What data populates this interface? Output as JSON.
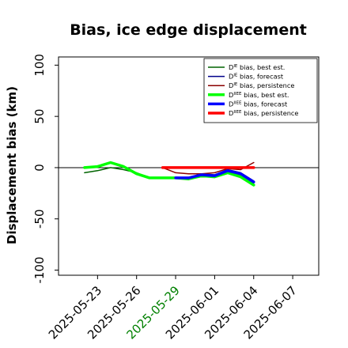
{
  "chart_data": {
    "type": "line",
    "title": "Bias, ice edge displacement",
    "ylabel": "Displacement bias (km)",
    "xlabel": "",
    "ylim": [
      -105,
      108
    ],
    "xlim": [
      "2025-05-20",
      "2025-06-09"
    ],
    "yticks": [
      -100,
      -50,
      0,
      50,
      100
    ],
    "yticklabels": [
      "-100",
      "-50",
      "0",
      "50",
      "100"
    ],
    "xticks": [
      "2025-05-23",
      "2025-05-26",
      "2025-05-29",
      "2025-06-01",
      "2025-06-04",
      "2025-06-07"
    ],
    "xticklabels": [
      "2025-05-23",
      "2025-05-26",
      "2025-05-29",
      "2025-06-01",
      "2025-06-04",
      "2025-06-07"
    ],
    "highlighted_xtick": "2025-05-29",
    "highlight_color": "#008000",
    "grid": false,
    "zero_line": true,
    "legend_position": "top-right",
    "series": [
      {
        "name": "D^IE bias, best est.",
        "name_main": "D",
        "name_sup": "IE",
        "name_rest": " bias, best est.",
        "color": "#006400",
        "width": 1.5,
        "x": [
          "2025-05-22",
          "2025-05-23",
          "2025-05-24",
          "2025-05-25",
          "2025-05-26",
          "2025-05-27",
          "2025-05-28",
          "2025-05-29",
          "2025-05-30",
          "2025-05-31",
          "2025-06-01",
          "2025-06-02",
          "2025-06-03",
          "2025-06-04"
        ],
        "y": [
          -5,
          -3,
          0,
          -2,
          -5,
          -10,
          -10,
          -10,
          -10,
          -9,
          -9,
          -5,
          -7,
          -14
        ]
      },
      {
        "name": "D^IE bias, forecast",
        "name_main": "D",
        "name_sup": "IE",
        "name_rest": " bias, forecast",
        "color": "#00008b",
        "width": 1.5,
        "x": [
          "2025-05-29",
          "2025-05-30",
          "2025-05-31",
          "2025-06-01",
          "2025-06-02",
          "2025-06-03",
          "2025-06-04"
        ],
        "y": [
          -10,
          -10,
          -6,
          -7,
          -2,
          -5,
          -13
        ]
      },
      {
        "name": "D^IE bias, persistence",
        "name_main": "D",
        "name_sup": "IE",
        "name_rest": " bias, persistence",
        "color": "#8b0000",
        "width": 1.5,
        "x": [
          "2025-05-28",
          "2025-05-29",
          "2025-05-30",
          "2025-05-31",
          "2025-06-01",
          "2025-06-02",
          "2025-06-03",
          "2025-06-04"
        ],
        "y": [
          0,
          -5,
          -6,
          -6,
          -5,
          -1,
          -2,
          5
        ]
      },
      {
        "name": "D^IIEE bias, best est.",
        "name_main": "D",
        "name_sup": "IIEE",
        "name_rest": " bias, best est.",
        "color": "#00ff00",
        "width": 3.5,
        "x": [
          "2025-05-22",
          "2025-05-23",
          "2025-05-24",
          "2025-05-25",
          "2025-05-26",
          "2025-05-27",
          "2025-05-28",
          "2025-05-29",
          "2025-05-30",
          "2025-05-31",
          "2025-06-01",
          "2025-06-02",
          "2025-06-03",
          "2025-06-04"
        ],
        "y": [
          0,
          1,
          5,
          1,
          -6,
          -10,
          -10,
          -10,
          -11,
          -8,
          -9,
          -5,
          -9,
          -17
        ]
      },
      {
        "name": "D^IIEE bias, forecast",
        "name_main": "D",
        "name_sup": "IIEE",
        "name_rest": " bias, forecast",
        "color": "#0000ff",
        "width": 3.5,
        "x": [
          "2025-05-29",
          "2025-05-30",
          "2025-05-31",
          "2025-06-01",
          "2025-06-02",
          "2025-06-03",
          "2025-06-04"
        ],
        "y": [
          -10,
          -10,
          -7,
          -8,
          -3,
          -6,
          -14
        ]
      },
      {
        "name": "D^IIEE bias, persistence",
        "name_main": "D",
        "name_sup": "IIEE",
        "name_rest": " bias, persistence",
        "color": "#ff0000",
        "width": 3.5,
        "x": [
          "2025-05-28",
          "2025-05-29",
          "2025-05-30",
          "2025-05-31",
          "2025-06-01",
          "2025-06-02",
          "2025-06-03",
          "2025-06-04"
        ],
        "y": [
          0,
          0,
          0,
          0,
          0,
          0,
          0,
          0
        ]
      }
    ]
  }
}
